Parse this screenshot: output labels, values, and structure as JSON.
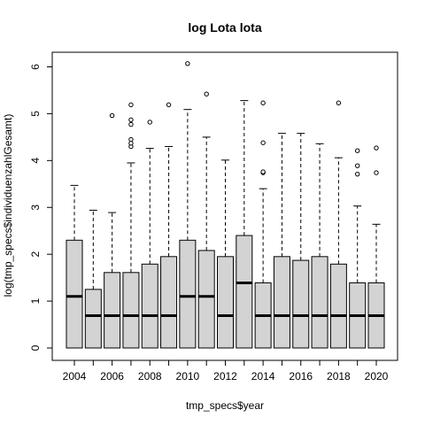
{
  "chart_data": {
    "type": "boxplot",
    "title": "log Lota lota",
    "xlabel": "tmp_specs$year",
    "ylabel": "log(tmp_specs$individuenzahlGesamt)",
    "ylim": [
      0,
      6
    ],
    "yticks": [
      0,
      1,
      2,
      3,
      4,
      5,
      6
    ],
    "xtick_labels": [
      "2004",
      "2006",
      "2008",
      "2010",
      "2012",
      "2014",
      "2016",
      "2018",
      "2020"
    ],
    "box_fill": "#d3d3d3",
    "categories": [
      "2004",
      "2005",
      "2006",
      "2007",
      "2008",
      "2009",
      "2010",
      "2011",
      "2012",
      "2013",
      "2014",
      "2015",
      "2016",
      "2017",
      "2018",
      "2019",
      "2020"
    ],
    "boxes": [
      {
        "year": "2004",
        "whisker_low": 0,
        "q1": 0,
        "median": 1.1,
        "q3": 2.3,
        "whisker_high": 3.47,
        "outliers": []
      },
      {
        "year": "2005",
        "whisker_low": 0,
        "q1": 0,
        "median": 0.69,
        "q3": 1.25,
        "whisker_high": 2.94,
        "outliers": []
      },
      {
        "year": "2006",
        "whisker_low": 0,
        "q1": 0,
        "median": 0.69,
        "q3": 1.61,
        "whisker_high": 2.89,
        "outliers": [
          4.96
        ]
      },
      {
        "year": "2007",
        "whisker_low": 0,
        "q1": 0,
        "median": 0.69,
        "q3": 1.61,
        "whisker_high": 3.95,
        "outliers": [
          4.3,
          4.37,
          4.45,
          4.77,
          4.87,
          5.19
        ]
      },
      {
        "year": "2008",
        "whisker_low": 0,
        "q1": 0,
        "median": 0.69,
        "q3": 1.79,
        "whisker_high": 4.26,
        "outliers": [
          4.82
        ]
      },
      {
        "year": "2009",
        "whisker_low": 0,
        "q1": 0,
        "median": 0.69,
        "q3": 1.95,
        "whisker_high": 4.3,
        "outliers": [
          5.19
        ]
      },
      {
        "year": "2010",
        "whisker_low": 0,
        "q1": 0,
        "median": 1.1,
        "q3": 2.3,
        "whisker_high": 5.09,
        "outliers": [
          6.07
        ]
      },
      {
        "year": "2011",
        "whisker_low": 0,
        "q1": 0,
        "median": 1.1,
        "q3": 2.08,
        "whisker_high": 4.5,
        "outliers": [
          5.42
        ]
      },
      {
        "year": "2012",
        "whisker_low": 0,
        "q1": 0,
        "median": 0.69,
        "q3": 1.95,
        "whisker_high": 4.01,
        "outliers": []
      },
      {
        "year": "2013",
        "whisker_low": 0,
        "q1": 0,
        "median": 1.39,
        "q3": 2.4,
        "whisker_high": 5.28,
        "outliers": []
      },
      {
        "year": "2014",
        "whisker_low": 0,
        "q1": 0,
        "median": 0.69,
        "q3": 1.39,
        "whisker_high": 3.4,
        "outliers": [
          3.74,
          3.76,
          4.38,
          5.23
        ]
      },
      {
        "year": "2015",
        "whisker_low": 0,
        "q1": 0,
        "median": 0.69,
        "q3": 1.95,
        "whisker_high": 4.58,
        "outliers": []
      },
      {
        "year": "2016",
        "whisker_low": 0,
        "q1": 0,
        "median": 0.69,
        "q3": 1.87,
        "whisker_high": 4.58,
        "outliers": []
      },
      {
        "year": "2017",
        "whisker_low": 0,
        "q1": 0,
        "median": 0.69,
        "q3": 1.95,
        "whisker_high": 4.36,
        "outliers": []
      },
      {
        "year": "2018",
        "whisker_low": 0,
        "q1": 0,
        "median": 0.69,
        "q3": 1.79,
        "whisker_high": 4.06,
        "outliers": [
          5.23
        ]
      },
      {
        "year": "2019",
        "whisker_low": 0,
        "q1": 0,
        "median": 0.69,
        "q3": 1.39,
        "whisker_high": 3.03,
        "outliers": [
          3.71,
          3.89,
          4.21
        ]
      },
      {
        "year": "2020",
        "whisker_low": 0,
        "q1": 0,
        "median": 0.69,
        "q3": 1.39,
        "whisker_high": 2.64,
        "outliers": [
          3.74,
          4.27
        ]
      }
    ]
  }
}
